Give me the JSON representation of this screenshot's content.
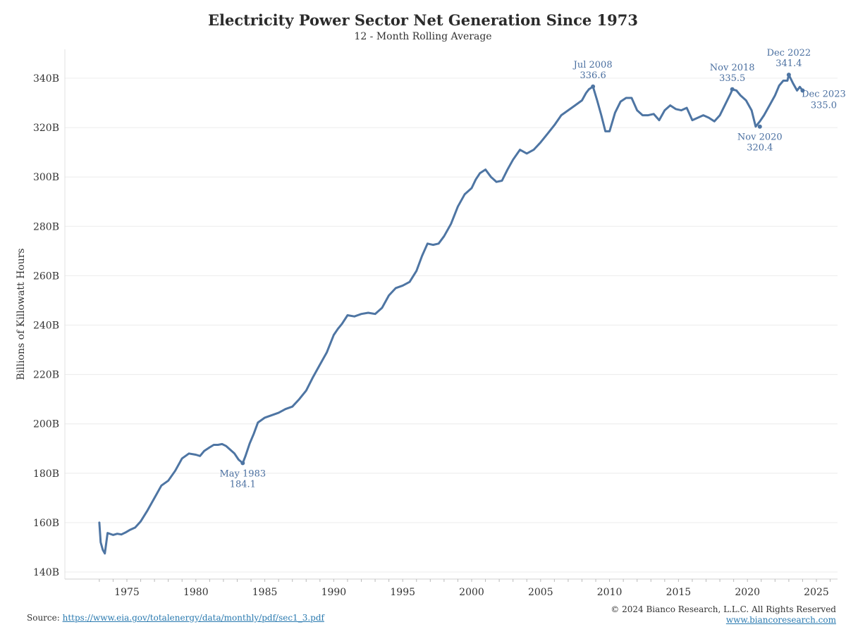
{
  "header": {
    "title": "Electricity Power Sector Net Generation Since 1973",
    "subtitle": "12 - Month Rolling Average"
  },
  "footer": {
    "source_label": "Source:",
    "source_link": "https://www.eia.gov/totalenergy/data/monthly/pdf/sec1_3.pdf",
    "copyright": "© 2024 Bianco Research, L.L.C. All Rights Reserved",
    "website": "www.biancoresearch.com"
  },
  "colors": {
    "line": "#4e75a3",
    "annotation": "#4a6fa0",
    "grid": "#ececec",
    "link": "#2a7ab0"
  },
  "chart_data": {
    "type": "line",
    "title": "Electricity Power Sector Net Generation Since 1973",
    "subtitle": "12 - Month Rolling Average",
    "xlabel": "",
    "ylabel": "Billions of Killowatt Hours",
    "xlim": [
      1972.5,
      2026.0
    ],
    "ylim": [
      140,
      350
    ],
    "y_ticks": [
      140,
      160,
      180,
      200,
      220,
      240,
      260,
      280,
      300,
      320,
      340
    ],
    "y_tick_labels": [
      "140B",
      "160B",
      "180B",
      "200B",
      "220B",
      "240B",
      "260B",
      "280B",
      "300B",
      "320B",
      "340B"
    ],
    "x_ticks": [
      1975,
      1980,
      1985,
      1990,
      1995,
      2000,
      2005,
      2010,
      2015,
      2020,
      2025
    ],
    "x_tick_labels": [
      "1975",
      "1980",
      "1985",
      "1990",
      "1995",
      "2000",
      "2005",
      "2010",
      "2015",
      "2020",
      "2025"
    ],
    "grid": "horizontal",
    "series": [
      {
        "x": [
          1973.0,
          1973.1,
          1973.25,
          1973.4,
          1973.6,
          1974.0,
          1974.3,
          1974.6,
          1974.9,
          1975.2,
          1975.6,
          1976.0,
          1976.5,
          1977.0,
          1977.5,
          1978.0,
          1978.5,
          1979.0,
          1979.5,
          1980.0,
          1980.3,
          1980.6,
          1981.0,
          1981.3,
          1981.6,
          1981.9,
          1982.2,
          1982.5,
          1982.8,
          1983.1,
          1983.4,
          1983.6,
          1983.9,
          1984.2,
          1984.5,
          1985.0,
          1985.5,
          1986.0,
          1986.5,
          1987.0,
          1987.5,
          1988.0,
          1988.5,
          1989.0,
          1989.5,
          1990.0,
          1990.3,
          1990.6,
          1991.0,
          1991.5,
          1992.0,
          1992.5,
          1993.0,
          1993.5,
          1994.0,
          1994.5,
          1995.0,
          1995.5,
          1996.0,
          1996.4,
          1996.8,
          1997.2,
          1997.6,
          1998.0,
          1998.5,
          1999.0,
          1999.5,
          2000.0,
          2000.3,
          2000.6,
          2001.0,
          2001.4,
          2001.8,
          2002.2,
          2002.6,
          2003.0,
          2003.5,
          2004.0,
          2004.5,
          2005.0,
          2005.5,
          2006.0,
          2006.5,
          2007.0,
          2007.5,
          2008.0,
          2008.3,
          2008.5,
          2008.8,
          2009.1,
          2009.4,
          2009.7,
          2010.0,
          2010.4,
          2010.8,
          2011.2,
          2011.6,
          2012.0,
          2012.4,
          2012.8,
          2013.2,
          2013.6,
          2014.0,
          2014.4,
          2014.8,
          2015.2,
          2015.6,
          2016.0,
          2016.4,
          2016.8,
          2017.2,
          2017.6,
          2018.0,
          2018.4,
          2018.8,
          2018.9,
          2019.2,
          2019.5,
          2019.9,
          2020.3,
          2020.6,
          2020.9,
          2021.2,
          2021.6,
          2022.0,
          2022.3,
          2022.6,
          2022.9,
          2023.0,
          2023.3,
          2023.6,
          2023.8,
          2024.0
        ],
        "y": [
          160.0,
          152.0,
          149.0,
          147.5,
          155.8,
          155.0,
          155.5,
          155.2,
          156.0,
          157.0,
          158.0,
          160.5,
          165.0,
          170.0,
          175.0,
          177.0,
          181.0,
          186.0,
          188.0,
          187.5,
          187.0,
          189.0,
          190.5,
          191.5,
          191.5,
          191.8,
          191.0,
          189.5,
          188.0,
          185.5,
          184.1,
          187.0,
          192.0,
          196.0,
          200.5,
          202.5,
          203.5,
          204.5,
          206.0,
          207.0,
          210.0,
          213.5,
          219.0,
          224.0,
          229.0,
          236.0,
          238.5,
          240.5,
          244.0,
          243.5,
          244.5,
          245.0,
          244.5,
          247.0,
          252.0,
          255.0,
          256.0,
          257.5,
          262.0,
          268.0,
          273.0,
          272.5,
          273.0,
          276.0,
          281.0,
          288.0,
          293.0,
          295.5,
          299.0,
          301.5,
          303.0,
          300.0,
          298.0,
          298.5,
          303.0,
          307.0,
          311.0,
          309.5,
          311.0,
          314.0,
          317.5,
          321.0,
          325.0,
          327.0,
          329.0,
          331.0,
          334.0,
          335.5,
          336.6,
          331.0,
          325.0,
          318.5,
          318.5,
          326.0,
          330.5,
          332.0,
          332.0,
          327.0,
          325.0,
          325.0,
          325.5,
          323.0,
          327.0,
          329.0,
          327.5,
          327.0,
          328.0,
          323.0,
          324.0,
          325.0,
          324.0,
          322.5,
          325.0,
          329.5,
          334.0,
          335.5,
          335.0,
          333.0,
          331.0,
          327.0,
          320.4,
          322.5,
          325.0,
          329.0,
          333.0,
          337.0,
          339.0,
          339.0,
          341.4,
          338.0,
          335.0,
          336.5,
          335.0
        ]
      }
    ],
    "annotations": [
      {
        "x": 1983.4,
        "y": 184.1,
        "date": "May 1983",
        "value": "184.1",
        "position": "below"
      },
      {
        "x": 2008.8,
        "y": 336.6,
        "date": "Jul 2008",
        "value": "336.6",
        "position": "above"
      },
      {
        "x": 2018.9,
        "y": 335.5,
        "date": "Nov 2018",
        "value": "335.5",
        "position": "above"
      },
      {
        "x": 2020.9,
        "y": 320.4,
        "date": "Nov 2020",
        "value": "320.4",
        "position": "below"
      },
      {
        "x": 2023.0,
        "y": 341.4,
        "date": "Dec 2022",
        "value": "341.4",
        "position": "above"
      },
      {
        "x": 2024.0,
        "y": 335.0,
        "date": "Dec 2023",
        "value": "335.0",
        "position": "right"
      }
    ]
  }
}
